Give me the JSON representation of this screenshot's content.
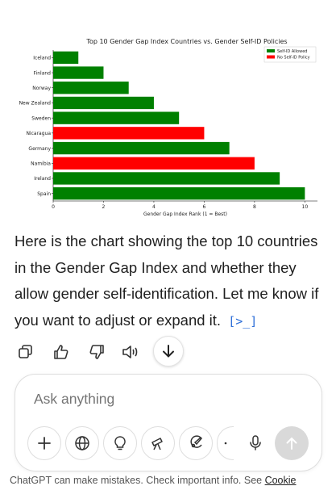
{
  "chart_data": {
    "type": "bar",
    "orientation": "horizontal",
    "title": "Top 10 Gender Gap Index Countries vs. Gender Self-ID Policies",
    "xlabel": "Gender Gap Index Rank (1 = Best)",
    "ylabel": "",
    "xlim": [
      0,
      10.5
    ],
    "xticks": [
      0,
      2,
      4,
      6,
      8,
      10
    ],
    "grid": false,
    "legend_position": "top-right",
    "categories": [
      "Iceland",
      "Finland",
      "Norway",
      "New Zealand",
      "Sweden",
      "Nicaragua",
      "Germany",
      "Namibia",
      "Ireland",
      "Spain"
    ],
    "values": [
      1,
      2,
      3,
      4,
      5,
      6,
      7,
      8,
      9,
      10
    ],
    "policy": [
      "allowed",
      "allowed",
      "allowed",
      "allowed",
      "allowed",
      "none",
      "allowed",
      "none",
      "allowed",
      "allowed"
    ],
    "legend": [
      {
        "key": "allowed",
        "label": "Self-ID Allowed",
        "color": "#008000"
      },
      {
        "key": "none",
        "label": "No Self-ID Policy",
        "color": "#ff0000"
      }
    ]
  },
  "message": {
    "text": "Here is the chart showing the top 10 countries in the Gender Gap Index and whether they allow gender self-identification. Let me know if you want to adjust or expand it.",
    "code_icon": "[>_]"
  },
  "actions": [
    "copy-icon",
    "thumbs-up-icon",
    "thumbs-down-icon",
    "speaker-icon"
  ],
  "composer": {
    "placeholder": "Ask anything",
    "tools": [
      "plus-icon",
      "globe-icon",
      "lightbulb-icon",
      "telescope-icon",
      "brush-icon",
      "more-icon",
      "microphone-icon"
    ]
  },
  "footer": {
    "text": "ChatGPT can make mistakes. Check important info. See ",
    "link": "Cookie"
  }
}
